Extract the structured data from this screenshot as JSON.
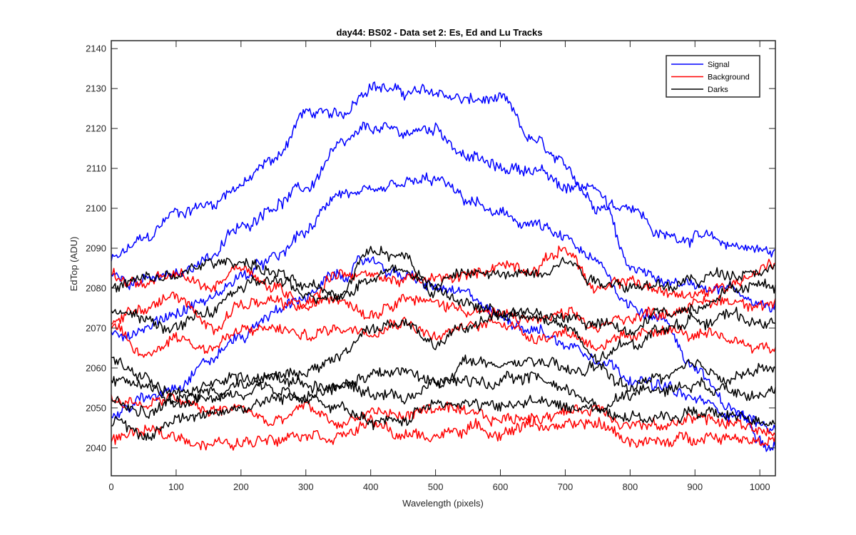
{
  "chart_data": {
    "type": "line",
    "title": "day44: BS02 - Data set 2: Es, Ed and Lu Tracks",
    "xlabel": "Wavelength (pixels)",
    "ylabel": "EdTop (ADU)",
    "xlim": [
      0,
      1024
    ],
    "ylim": [
      2033,
      2142
    ],
    "xticks": [
      0,
      100,
      200,
      300,
      400,
      500,
      600,
      700,
      800,
      900,
      1000
    ],
    "yticks": [
      2040,
      2050,
      2060,
      2070,
      2080,
      2090,
      2100,
      2110,
      2120,
      2130,
      2140
    ],
    "grid": false,
    "legend_position": "top-right",
    "legend": [
      {
        "name": "Signal",
        "color": "#0000ff"
      },
      {
        "name": "Background",
        "color": "#ff0000"
      },
      {
        "name": "Darks",
        "color": "#000000"
      }
    ],
    "x": [
      0,
      50,
      100,
      150,
      200,
      250,
      300,
      350,
      400,
      450,
      500,
      550,
      600,
      650,
      700,
      750,
      800,
      850,
      900,
      950,
      1024
    ],
    "series": [
      {
        "group": "Signal",
        "color": "#0000ff",
        "values": [
          2087,
          2092,
          2099,
          2101,
          2106,
          2112,
          2124,
          2123,
          2131,
          2129,
          2129,
          2127,
          2127,
          2117,
          2110,
          2101,
          2101,
          2093,
          2093,
          2091,
          2089
        ]
      },
      {
        "group": "Signal",
        "color": "#0000ff",
        "values": [
          2083,
          2082,
          2083,
          2088,
          2095,
          2101,
          2105,
          2115,
          2120,
          2119,
          2120,
          2113,
          2110,
          2110,
          2105,
          2106,
          2085,
          2082,
          2081,
          2080,
          2075
        ]
      },
      {
        "group": "Signal",
        "color": "#0000ff",
        "values": [
          2068,
          2070,
          2074,
          2077,
          2083,
          2087,
          2094,
          2104,
          2103,
          2106,
          2107,
          2102,
          2098,
          2096,
          2092,
          2086,
          2076,
          2072,
          2060,
          2050,
          2041
        ]
      },
      {
        "group": "Signal",
        "color": "#0000ff",
        "values": [
          2048,
          2052,
          2056,
          2062,
          2068,
          2074,
          2078,
          2083,
          2087,
          2083,
          2080,
          2078,
          2073,
          2070,
          2066,
          2063,
          2058,
          2055,
          2052,
          2049,
          2045
        ]
      },
      {
        "group": "Background",
        "color": "#ff0000",
        "values": [
          2083,
          2081,
          2083,
          2080,
          2086,
          2080,
          2077,
          2084,
          2083,
          2082,
          2082,
          2083,
          2086,
          2085,
          2090,
          2079,
          2082,
          2079,
          2078,
          2081,
          2086
        ]
      },
      {
        "group": "Background",
        "color": "#ff0000",
        "values": [
          2072,
          2075,
          2078,
          2070,
          2076,
          2076,
          2075,
          2078,
          2074,
          2078,
          2076,
          2075,
          2073,
          2072,
          2073,
          2070,
          2073,
          2074,
          2076,
          2077,
          2076
        ]
      },
      {
        "group": "Background",
        "color": "#ff0000",
        "values": [
          2070,
          2063,
          2068,
          2065,
          2069,
          2070,
          2068,
          2070,
          2070,
          2072,
          2068,
          2070,
          2072,
          2068,
          2069,
          2066,
          2067,
          2070,
          2068,
          2067,
          2065
        ]
      },
      {
        "group": "Background",
        "color": "#ff0000",
        "values": [
          2052,
          2051,
          2052,
          2049,
          2050,
          2046,
          2050,
          2046,
          2049,
          2048,
          2050,
          2048,
          2047,
          2048,
          2049,
          2050,
          2046,
          2045,
          2048,
          2046,
          2044
        ]
      },
      {
        "group": "Background",
        "color": "#ff0000",
        "values": [
          2042,
          2044,
          2043,
          2041,
          2041,
          2043,
          2044,
          2043,
          2046,
          2043,
          2043,
          2045,
          2044,
          2046,
          2045,
          2046,
          2042,
          2041,
          2043,
          2043,
          2042
        ]
      },
      {
        "group": "Darks",
        "color": "#000000",
        "values": [
          2080,
          2082,
          2083,
          2086,
          2087,
          2084,
          2080,
          2078,
          2083,
          2085,
          2081,
          2084,
          2083,
          2084,
          2087,
          2082,
          2081,
          2080,
          2082,
          2084,
          2085
        ]
      },
      {
        "group": "Darks",
        "color": "#000000",
        "values": [
          2075,
          2072,
          2070,
          2074,
          2080,
          2082,
          2078,
          2079,
          2090,
          2088,
          2079,
          2076,
          2074,
          2072,
          2073,
          2071,
          2069,
          2074,
          2075,
          2080,
          2081
        ]
      },
      {
        "group": "Darks",
        "color": "#000000",
        "values": [
          2062,
          2058,
          2054,
          2052,
          2056,
          2059,
          2058,
          2063,
          2070,
          2071,
          2066,
          2070,
          2074,
          2074,
          2070,
          2062,
          2066,
          2070,
          2072,
          2073,
          2071
        ]
      },
      {
        "group": "Darks",
        "color": "#000000",
        "values": [
          2058,
          2055,
          2052,
          2057,
          2058,
          2054,
          2052,
          2055,
          2058,
          2059,
          2056,
          2062,
          2060,
          2062,
          2059,
          2060,
          2055,
          2058,
          2060,
          2058,
          2060
        ]
      },
      {
        "group": "Darks",
        "color": "#000000",
        "values": [
          2051,
          2049,
          2051,
          2054,
          2053,
          2058,
          2056,
          2056,
          2054,
          2053,
          2056,
          2057,
          2056,
          2058,
          2055,
          2050,
          2054,
          2055,
          2056,
          2055,
          2054
        ]
      },
      {
        "group": "Darks",
        "color": "#000000",
        "values": [
          2046,
          2043,
          2047,
          2049,
          2050,
          2052,
          2053,
          2050,
          2046,
          2047,
          2052,
          2051,
          2050,
          2052,
          2050,
          2050,
          2048,
          2047,
          2049,
          2048,
          2047
        ]
      }
    ]
  }
}
